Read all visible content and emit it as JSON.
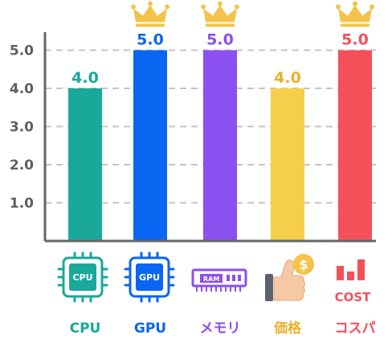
{
  "chart_data": {
    "type": "bar",
    "categories": [
      "CPU",
      "GPU",
      "メモリ",
      "価格",
      "コスパ"
    ],
    "values": [
      4.0,
      5.0,
      5.0,
      4.0,
      5.0
    ],
    "value_labels": [
      "4.0",
      "5.0",
      "5.0",
      "4.0",
      "5.0"
    ],
    "colors": [
      "#1aa89a",
      "#0a66f0",
      "#8c4ff0",
      "#f6cf4a",
      "#f4505a"
    ],
    "label_colors": [
      "#1aa89a",
      "#0a66f0",
      "#8c4ff0",
      "#e9b22a",
      "#f4505a"
    ],
    "crowned": [
      false,
      true,
      true,
      false,
      true
    ],
    "crown_color": "#f4c34a",
    "y_ticks": [
      "1.0",
      "2.0",
      "3.0",
      "4.0",
      "5.0"
    ],
    "ylim": [
      0,
      5.4
    ],
    "grid": true,
    "title": "",
    "xlabel": "",
    "ylabel": ""
  },
  "icons": [
    {
      "name": "cpu-icon",
      "text": "CPU"
    },
    {
      "name": "gpu-icon",
      "text": "GPU"
    },
    {
      "name": "ram-icon",
      "text": "RAM"
    },
    {
      "name": "price-icon",
      "text": "$"
    },
    {
      "name": "cost-icon",
      "text": "COST"
    }
  ]
}
